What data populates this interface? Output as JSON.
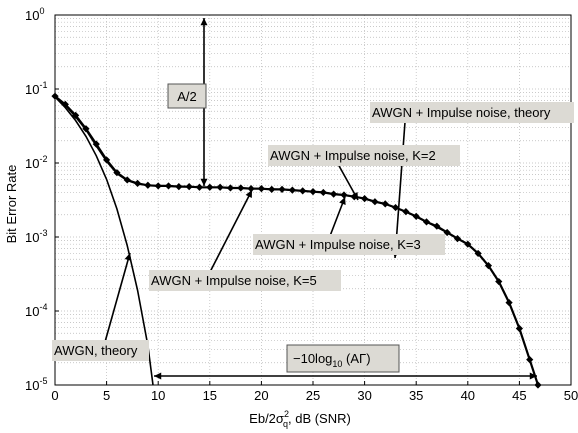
{
  "chart_data": {
    "type": "line",
    "xlabel_pre": "Eb/2σ",
    "xlabel_sub": "q",
    "xlabel_sup": "2",
    "xlabel_post": ", dB (SNR)",
    "ylabel": "Bit Error Rate",
    "xlim": [
      0,
      50
    ],
    "ylim": [
      1e-05,
      1
    ],
    "yscale": "log",
    "grid": true,
    "x_ticks": [
      "0",
      "5",
      "10",
      "15",
      "20",
      "25",
      "30",
      "35",
      "40",
      "45",
      "50"
    ],
    "y_ticks": [
      {
        "base": "10",
        "exp": "0"
      },
      {
        "base": "10",
        "exp": "-1"
      },
      {
        "base": "10",
        "exp": "-2"
      },
      {
        "base": "10",
        "exp": "-3"
      },
      {
        "base": "10",
        "exp": "-4"
      },
      {
        "base": "10",
        "exp": "-5"
      }
    ],
    "series": [
      {
        "name": "AWGN, theory",
        "x": [
          0,
          1,
          2,
          3,
          4,
          5,
          6,
          7,
          8,
          9,
          9.5
        ],
        "y": [
          0.078,
          0.056,
          0.0375,
          0.0229,
          0.0125,
          0.006,
          0.0024,
          0.00077,
          0.00019,
          3.4e-05,
          1e-05
        ]
      },
      {
        "name": "AWGN + Impulse noise, theory",
        "x": [
          0,
          1,
          2,
          3,
          4,
          5,
          6,
          7,
          8,
          9,
          10,
          12,
          14,
          16,
          18,
          20,
          22,
          24,
          26,
          28,
          30,
          32,
          34,
          36,
          38,
          40,
          41,
          42,
          43,
          44,
          45,
          46,
          46.8
        ],
        "y": [
          0.08,
          0.06,
          0.042,
          0.028,
          0.017,
          0.0105,
          0.0072,
          0.0058,
          0.0052,
          0.005,
          0.0049,
          0.0048,
          0.0047,
          0.0047,
          0.0046,
          0.0045,
          0.0044,
          0.0042,
          0.004,
          0.0037,
          0.0033,
          0.0028,
          0.0022,
          0.0016,
          0.00115,
          0.0008,
          0.0006,
          0.00041,
          0.00025,
          0.00013,
          5.8e-05,
          2.2e-05,
          1e-05
        ]
      },
      {
        "name": "AWGN + Impulse noise, K=2",
        "x": [
          0,
          1,
          2,
          3,
          4,
          5,
          6,
          7,
          8,
          9,
          10,
          11,
          12,
          13,
          14,
          15,
          16,
          17,
          18,
          19,
          20,
          21,
          22,
          23,
          24,
          25,
          26,
          27,
          28,
          29,
          30,
          31,
          32,
          33,
          34,
          35,
          36,
          37,
          38,
          39,
          40,
          41,
          42,
          43,
          44,
          45,
          46,
          46.8
        ],
        "y": [
          0.08,
          0.062,
          0.044,
          0.029,
          0.018,
          0.011,
          0.0074,
          0.0059,
          0.0053,
          0.005,
          0.0049,
          0.0049,
          0.0048,
          0.0048,
          0.0047,
          0.0047,
          0.0047,
          0.0046,
          0.0046,
          0.0045,
          0.0045,
          0.0044,
          0.0044,
          0.0043,
          0.0042,
          0.0041,
          0.004,
          0.0038,
          0.0037,
          0.0035,
          0.0033,
          0.003,
          0.0028,
          0.0025,
          0.0022,
          0.0019,
          0.0016,
          0.0014,
          0.00115,
          0.00095,
          0.0008,
          0.0006,
          0.00041,
          0.00025,
          0.00013,
          5.8e-05,
          2.2e-05,
          1e-05
        ]
      }
    ],
    "annotations": [
      {
        "text": "A/2",
        "kind": "label"
      },
      {
        "text": "AWGN + Impulse noise, theory",
        "kind": "label"
      },
      {
        "text": "AWGN + Impulse noise, K=2",
        "kind": "label"
      },
      {
        "text": "AWGN + Impulse noise, K=3",
        "kind": "label"
      },
      {
        "text": "AWGN + Impulse noise, K=5",
        "kind": "label"
      },
      {
        "text": "AWGN, theory",
        "kind": "label"
      },
      {
        "pre": "−10log",
        "sub": "10",
        "post": " (AΓ)",
        "kind": "label"
      }
    ],
    "colors": {
      "line": "#000000",
      "grid": "#b8b8b8",
      "label_bg": "#dcdad4",
      "label_border": "#555555"
    }
  }
}
